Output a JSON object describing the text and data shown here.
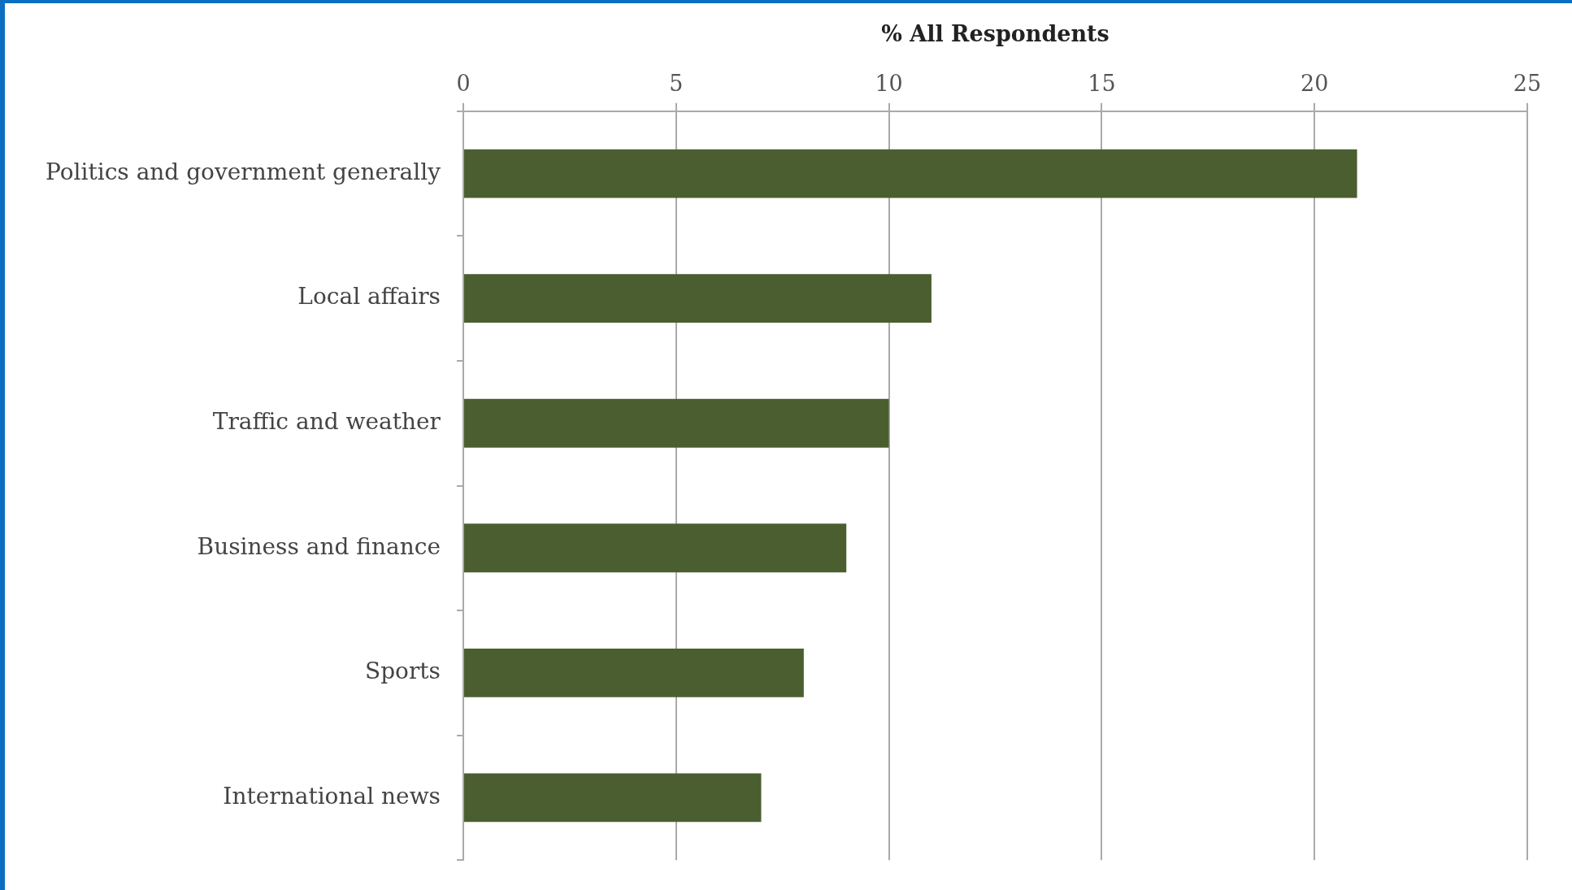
{
  "chart_data": {
    "type": "bar",
    "orientation": "horizontal",
    "xlabel": "% All Respondents",
    "categories": [
      "Politics and government generally",
      "Local affairs",
      "Traffic and weather",
      "Business and finance",
      "Sports",
      "International news"
    ],
    "values": [
      21,
      11,
      10,
      9,
      8,
      7
    ],
    "color": "#4a5e2f",
    "xlim": [
      0,
      25
    ],
    "xticks": [
      0,
      5,
      10,
      15,
      20,
      25
    ],
    "grid": "x"
  }
}
